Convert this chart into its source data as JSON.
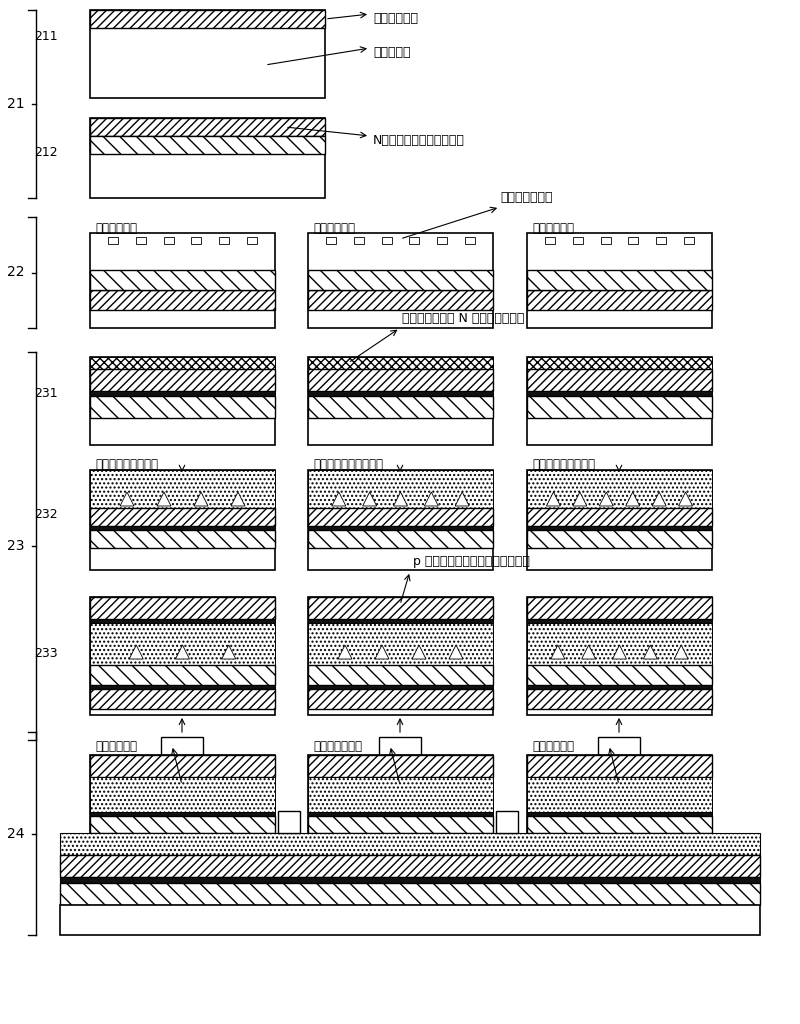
{
  "bg_color": "#ffffff",
  "labels": {
    "semiconductor_buffer": "半导体缓冲层",
    "sapphire_substrate": "蓝宝石衬底",
    "n_type_contact": "N型半导体接触层和定位层",
    "quantum_dot_holes": "量子点定位孔洞",
    "short_wave_22": "短波长发光区",
    "ultra_short_wave_22": "超短波长发光",
    "long_wave_22": "长波长发光区",
    "semiconductor_improve": "半导体改善层及 N 型半导体阻挡层",
    "short_qd_active": "短波长量子点有源区",
    "ultra_short_qd_active": "超短波长量子点有源区",
    "long_qd_active": "长波长量子点有源区",
    "p_type_barrier": "p 型半导体阻挡层和半导体接触层",
    "short_wave_24": "短波长发光区",
    "ultra_short_wave_24": "超短波长发光区",
    "long_wave_24": "长波长发光区"
  },
  "section_labels": {
    "s21": "21",
    "s211": "211",
    "s212": "212",
    "s22": "22",
    "s23": "23",
    "s231": "231",
    "s232": "232",
    "s233": "233",
    "s24": "24"
  }
}
